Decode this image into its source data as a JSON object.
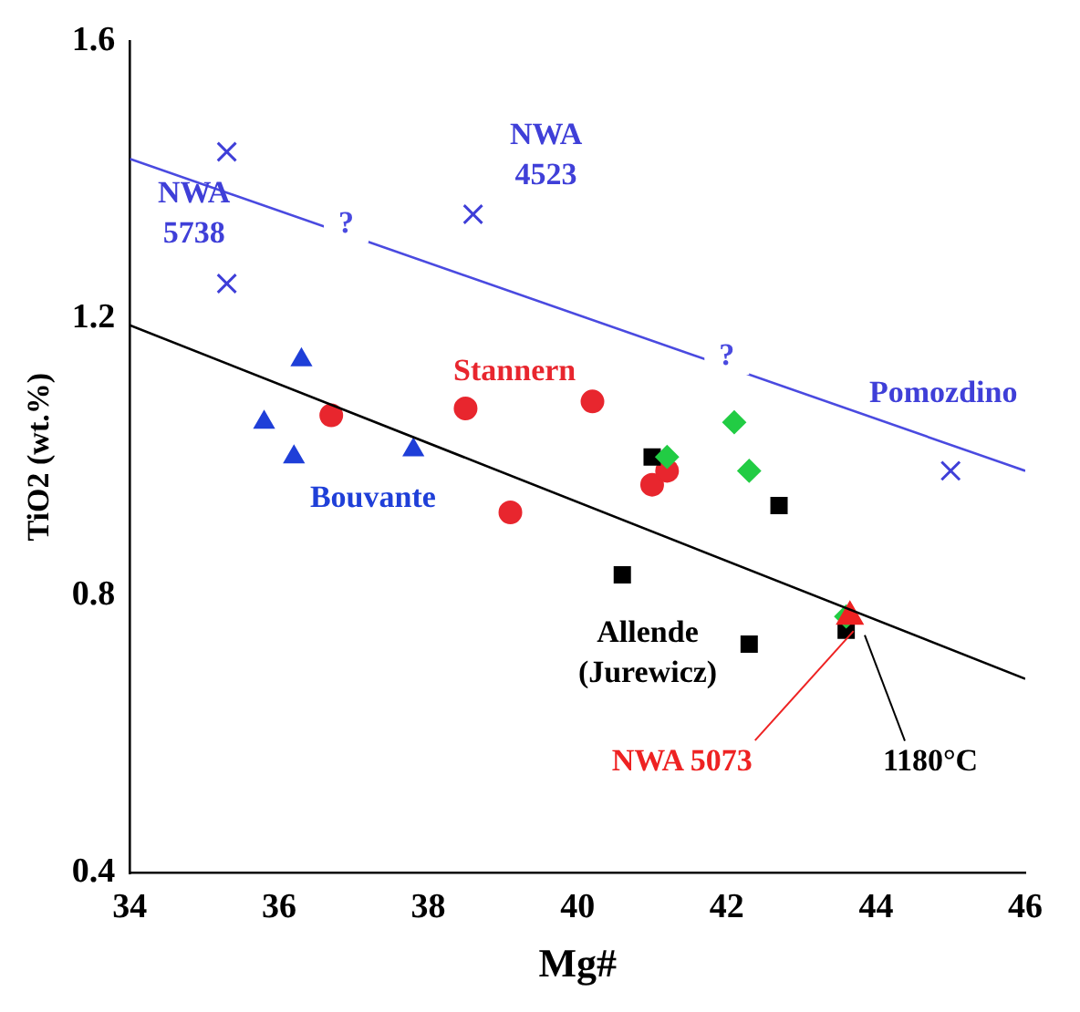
{
  "chart_data": {
    "type": "scatter",
    "xlabel": "Mg#",
    "ylabel": "TiO2 (wt.%)",
    "xlim": [
      34,
      46
    ],
    "xticks": [
      34,
      36,
      38,
      40,
      42,
      44,
      46
    ],
    "ylim": [
      0.4,
      1.6
    ],
    "yticks": [
      0.4,
      0.8,
      1.2,
      1.6
    ],
    "grid": false,
    "legend": false,
    "series": [
      {
        "name": "NWA 5738",
        "color": "#3f3fd8",
        "marker": "cross",
        "x": [
          35.3,
          35.3
        ],
        "values": [
          1.44,
          1.25
        ]
      },
      {
        "name": "NWA 4523",
        "color": "#3f3fd8",
        "marker": "cross",
        "x": [
          38.6
        ],
        "values": [
          1.35
        ]
      },
      {
        "name": "Pomozdino",
        "color": "#3f3fd8",
        "marker": "cross",
        "x": [
          45.0
        ],
        "values": [
          0.98
        ]
      },
      {
        "name": "Bouvante",
        "color": "#1f3fd8",
        "marker": "triangle",
        "x": [
          35.8,
          36.2,
          36.3,
          37.8
        ],
        "values": [
          1.05,
          1.0,
          1.14,
          1.01
        ]
      },
      {
        "name": "Stannern",
        "color": "#e8262e",
        "marker": "circle",
        "x": [
          36.7,
          38.5,
          39.1,
          40.2,
          41.0,
          41.2
        ],
        "values": [
          1.06,
          1.07,
          0.92,
          1.08,
          0.96,
          0.98
        ]
      },
      {
        "name": "Allende (Jurewicz)",
        "color": "#000000",
        "marker": "square",
        "x": [
          41.0,
          40.6,
          42.7,
          42.3,
          43.6
        ],
        "values": [
          1.0,
          0.83,
          0.93,
          0.73,
          0.75
        ]
      },
      {
        "color": "#22cc44",
        "marker": "diamond",
        "x": [
          41.2,
          42.1,
          42.3,
          43.6
        ],
        "values": [
          1.0,
          1.05,
          0.98,
          0.77
        ]
      },
      {
        "name": "NWA 5073",
        "color": "#ee2222",
        "marker": "triangle",
        "x": [
          43.65
        ],
        "values": [
          0.77
        ]
      },
      {
        "type": "line",
        "color": "#4a4ae0",
        "x": [
          34,
          46
        ],
        "values": [
          1.43,
          0.98
        ]
      },
      {
        "type": "line",
        "name": "1180°C",
        "color": "#000000",
        "x": [
          34,
          46
        ],
        "values": [
          1.19,
          0.68
        ]
      }
    ],
    "annotations": [
      {
        "text": "?",
        "x": 36.9,
        "y": 1.335
      },
      {
        "text": "?",
        "x": 42.0,
        "y": 1.145
      }
    ]
  }
}
